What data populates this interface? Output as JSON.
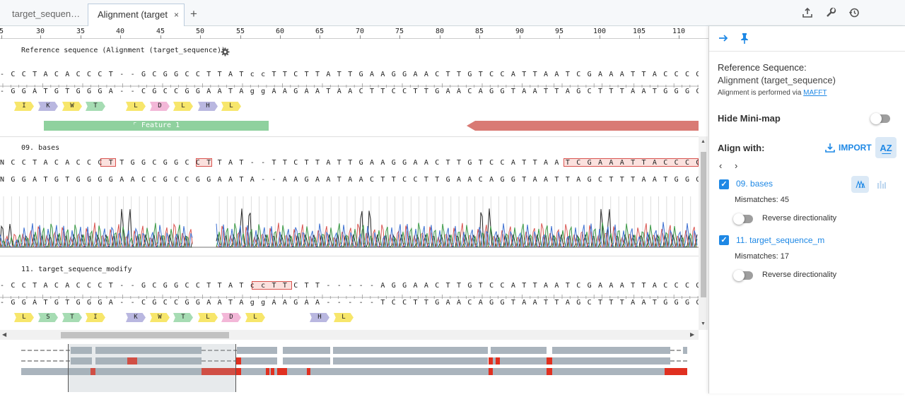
{
  "tabs": [
    {
      "label": "target_sequen…"
    },
    {
      "label": "Alignment (target"
    }
  ],
  "tab_add_label": "+",
  "tab_close_label": "×",
  "ruler": {
    "ticks": [
      "5",
      "30",
      "35",
      "40",
      "45",
      "50",
      "55",
      "60",
      "65",
      "70",
      "75",
      "80",
      "85",
      "90",
      "95",
      "100",
      "105",
      "110"
    ]
  },
  "reference": {
    "label": "Reference sequence (Alignment (target_sequence))",
    "top": "- C C T A C A C C C T - - G C G G C C T T A T c c T T C T T A T T G A A G G A A C T T G T C C A T T A A T C G A A A T T A C C C G T T A G - - - - - - - - - - - - - - - - - - - - - - - - - - - - - - - - - - - - - - - - -",
    "bottom": "- G G A T G T G G G A - - C G C C G G A A T A g g A A G A A T A A C T T C C T T G A A C A G G T A A T T A G C T T T A A T G G G C A A T C - - - - - - - - - - - - - - - - - - - - - - - - - - - - - - - - - - - - - - - - - -",
    "aa": [
      "I",
      "K",
      "W",
      "T",
      "L",
      "D",
      "L",
      "H",
      "L"
    ],
    "feature_label": "Feature 1"
  },
  "track_bases": {
    "label": "09. bases",
    "top": "N C C T A C A C C C T T G G C G G C C T T A T - - T T C T T A T T G A A G G A A C T T G T C C A T T A A T C G A A A T T A C C C G T T A G T T T T C T C T T T A T T T G",
    "bottom": "N G G A T G T G G G G A A C C G C C G G A A T A - - A A G A A T A A C T T C C T T G A A C A G G T A A T T A G C T T T A A T G G G C A A T C A A A A G A G A A A T A A A A C"
  },
  "track_modify": {
    "label": "11. target_sequence_modify",
    "top": "- C C T A C A C C C T - - G C G G C C T T A T c c T T C T T - - - - - A G G A A C T T G T C C A T T A A T C G A A A T T A C C C G T T A G - - - - - - - - - - - - - - - - - - - - - - - - - - - - - - - - - - - - - - - - -",
    "bottom": "- G G A T G T G G G A - - C G C C G G A A T A g g A A G A A - - - - - T C C T T G A A C A G G T A A T T A G C T T T A A T G G G C A A T C - - - - - - - - - - - - - - - - - - - - - - - - - - - - - - - - - - - - - - - - - -",
    "aa": [
      "L",
      "S",
      "T",
      "I",
      "K",
      "W",
      "T",
      "L",
      "D",
      "L",
      "H",
      "L"
    ]
  },
  "aa_colors": {
    "I": "#f7e66b",
    "K": "#b9b7e0",
    "W": "#f7e66b",
    "T": "#a6dcb3",
    "L": "#f7e66b",
    "D": "#f3b7d8",
    "H": "#b9b7e0",
    "S": "#a6dcb3"
  },
  "colors": {
    "accent": "#1e88e5",
    "feature": "#8fd19e",
    "feature_reverse": "#d97a74",
    "mismatch": "#e03020",
    "minimap_bar": "#aab4bd"
  },
  "panel": {
    "ref_title": "Reference Sequence:",
    "ref_name": "Alignment (target_sequence)",
    "maffting_text": "Alignment is performed via",
    "maffting_link": "MAFFT",
    "hide_minimap": "Hide Mini-map",
    "align_with": "Align with:",
    "import_label": "IMPORT",
    "items": [
      {
        "name": "09. bases",
        "mismatches": "Mismatches: 45",
        "reverse": "Reverse directionality"
      },
      {
        "name": "11. target_sequence_m",
        "mismatches": "Mismatches: 17",
        "reverse": "Reverse directionality"
      }
    ]
  }
}
